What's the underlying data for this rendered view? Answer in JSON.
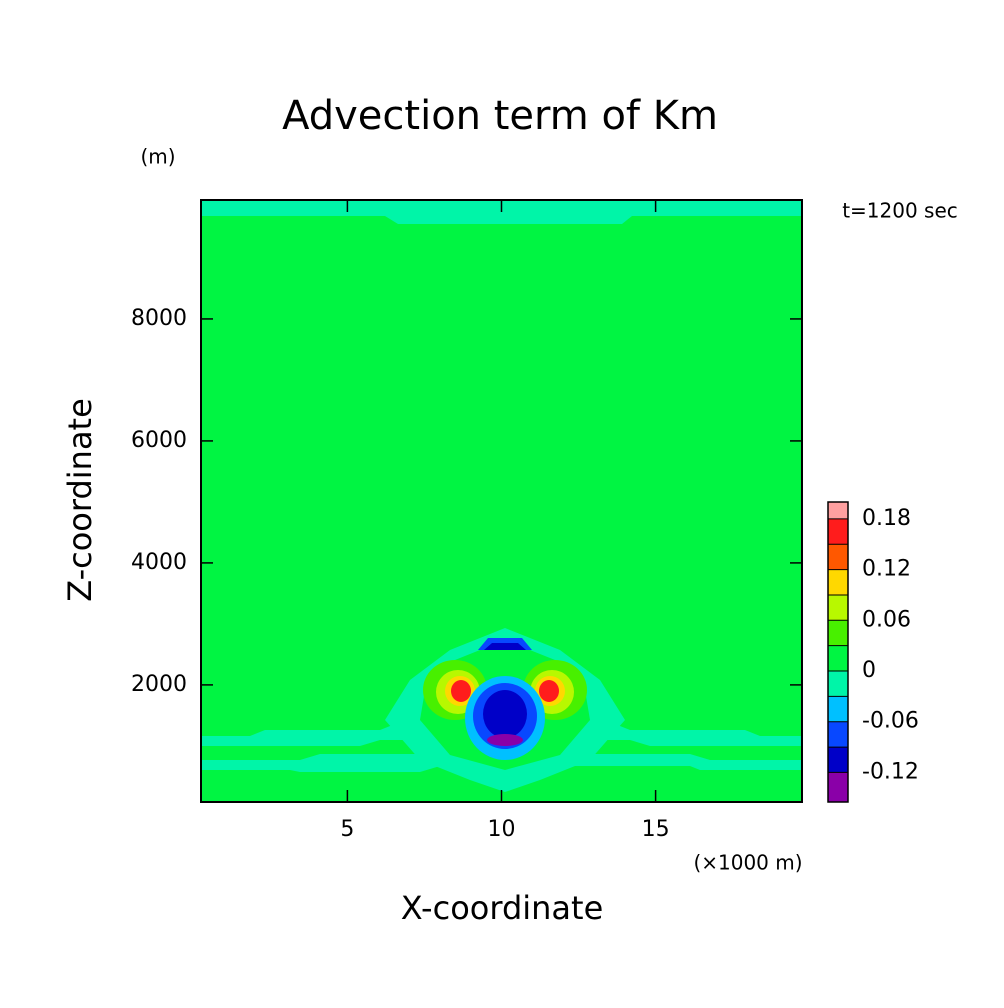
{
  "chart_data": {
    "type": "contour",
    "title": "Advection term of Km",
    "y_unit": "(m)",
    "annotation": "t=1200 sec",
    "x_label": "X-coordinate",
    "y_label": "Z-coordinate",
    "x_unit": "(×1000 m)",
    "xlim": [
      0.25,
      19.75
    ],
    "xticks": [
      5,
      10,
      15
    ],
    "ylim": [
      80,
      9950
    ],
    "yticks": [
      2000,
      4000,
      6000,
      8000
    ],
    "colorbar": {
      "lim": [
        -0.155,
        0.2
      ],
      "levels": [
        -0.12,
        -0.09,
        -0.06,
        -0.03,
        0,
        0.03,
        0.06,
        0.09,
        0.12,
        0.15,
        0.18
      ],
      "colors": [
        "#8a00a8",
        "#0000c8",
        "#0848ff",
        "#00c0ff",
        "#00f5a8",
        "#00f542",
        "#48f000",
        "#b8f800",
        "#ffd800",
        "#ff5800",
        "#ff1c1c",
        "#ffa0a0"
      ],
      "ticks": [
        -0.12,
        -0.06,
        0,
        0.06,
        0.12,
        0.18
      ]
    }
  }
}
